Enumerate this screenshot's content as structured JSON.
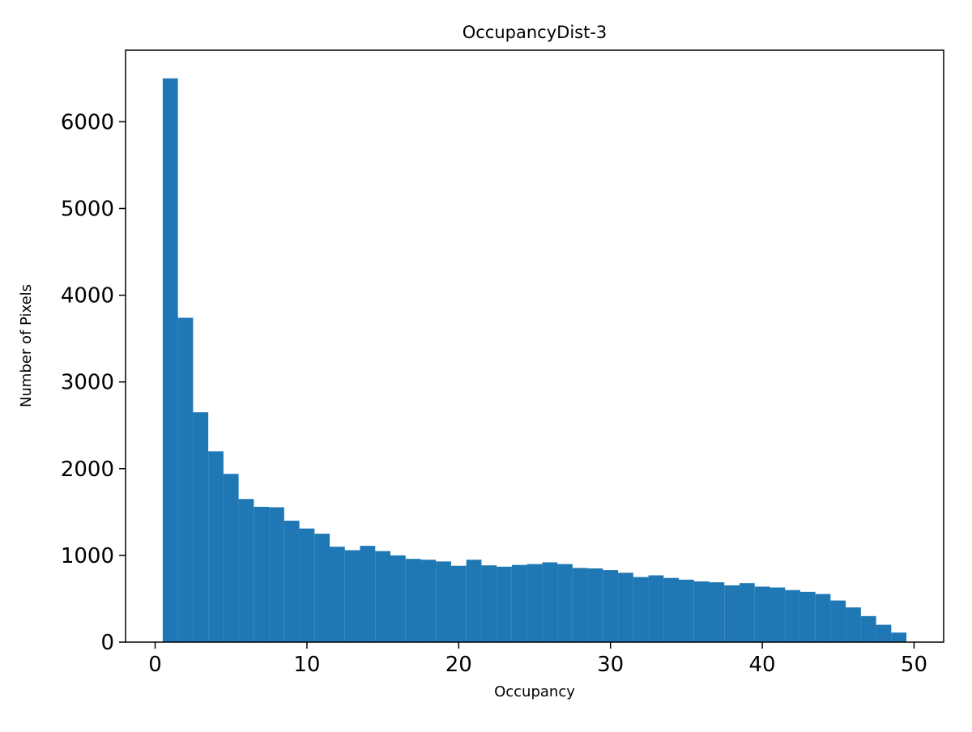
{
  "figure": {
    "background": "#ffffff"
  },
  "chart_data": {
    "type": "bar",
    "subtype": "histogram",
    "title": "OccupancyDist-3",
    "xlabel": "Occupancy",
    "ylabel": "Number of Pixels",
    "bar_color": "#1f77b4",
    "axis_color": "#000000",
    "grid": false,
    "legend": "none",
    "bin_start": 0.5,
    "bin_width": 1,
    "values": [
      6500,
      3740,
      2650,
      2200,
      1940,
      1650,
      1560,
      1555,
      1400,
      1310,
      1250,
      1100,
      1060,
      1110,
      1050,
      1000,
      960,
      950,
      930,
      880,
      950,
      885,
      870,
      890,
      900,
      920,
      900,
      855,
      850,
      830,
      800,
      750,
      770,
      740,
      720,
      700,
      690,
      655,
      680,
      640,
      630,
      600,
      580,
      555,
      480,
      400,
      300,
      200,
      110
    ],
    "xlim": [
      -1.95,
      51.95
    ],
    "ylim": [
      0,
      6825
    ],
    "xticks": [
      0,
      10,
      20,
      30,
      40,
      50
    ],
    "yticks": [
      0,
      1000,
      2000,
      3000,
      4000,
      5000,
      6000
    ]
  }
}
